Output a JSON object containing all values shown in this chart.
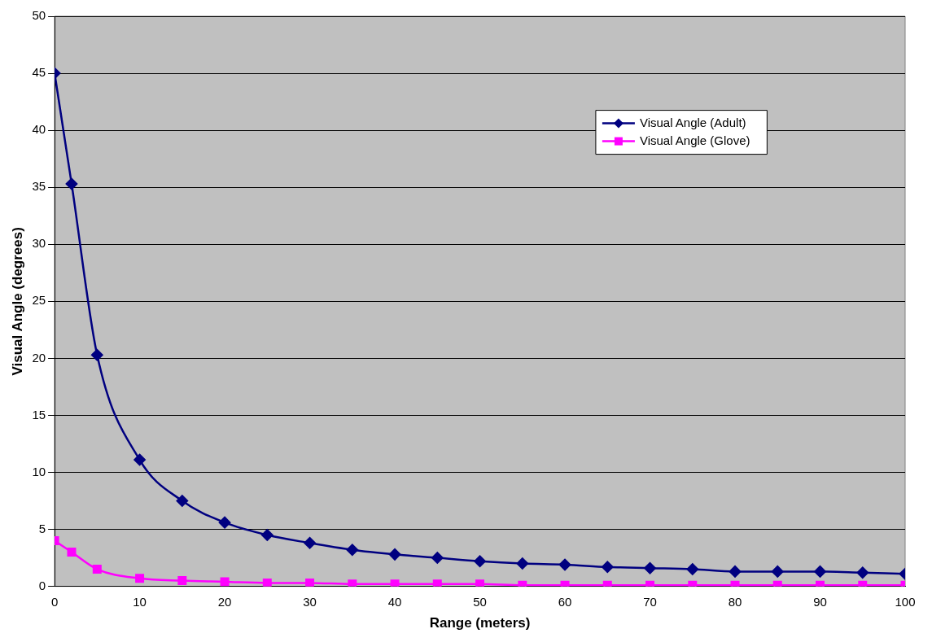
{
  "chart_data": {
    "type": "line",
    "xlabel": "Range (meters)",
    "ylabel": "Visual Angle (degrees)",
    "x": [
      0,
      2,
      5,
      10,
      15,
      20,
      25,
      30,
      35,
      40,
      45,
      50,
      55,
      60,
      65,
      70,
      75,
      80,
      85,
      90,
      95,
      100
    ],
    "series": [
      {
        "name": "Visual Angle (Adult)",
        "color": "#000080",
        "marker": "diamond",
        "values": [
          45,
          35.3,
          20.3,
          11.1,
          7.5,
          5.6,
          4.5,
          3.8,
          3.2,
          2.8,
          2.5,
          2.2,
          2.0,
          1.9,
          1.7,
          1.6,
          1.5,
          1.3,
          1.3,
          1.3,
          1.2,
          1.1
        ]
      },
      {
        "name": "Visual Angle (Glove)",
        "color": "#ff00ff",
        "marker": "square",
        "values": [
          4,
          3.0,
          1.5,
          0.7,
          0.5,
          0.4,
          0.3,
          0.3,
          0.2,
          0.2,
          0.2,
          0.2,
          0.1,
          0.1,
          0.1,
          0.1,
          0.1,
          0.1,
          0.1,
          0.1,
          0.1,
          0.1
        ]
      }
    ],
    "xlim": [
      0,
      100
    ],
    "xticks": [
      0,
      10,
      20,
      30,
      40,
      50,
      60,
      70,
      80,
      90,
      100
    ],
    "ylim": [
      0,
      50
    ],
    "yticks": [
      0,
      5,
      10,
      15,
      20,
      25,
      30,
      35,
      40,
      45,
      50
    ],
    "grid": "y",
    "legend": "top right",
    "line_style": "solid"
  }
}
